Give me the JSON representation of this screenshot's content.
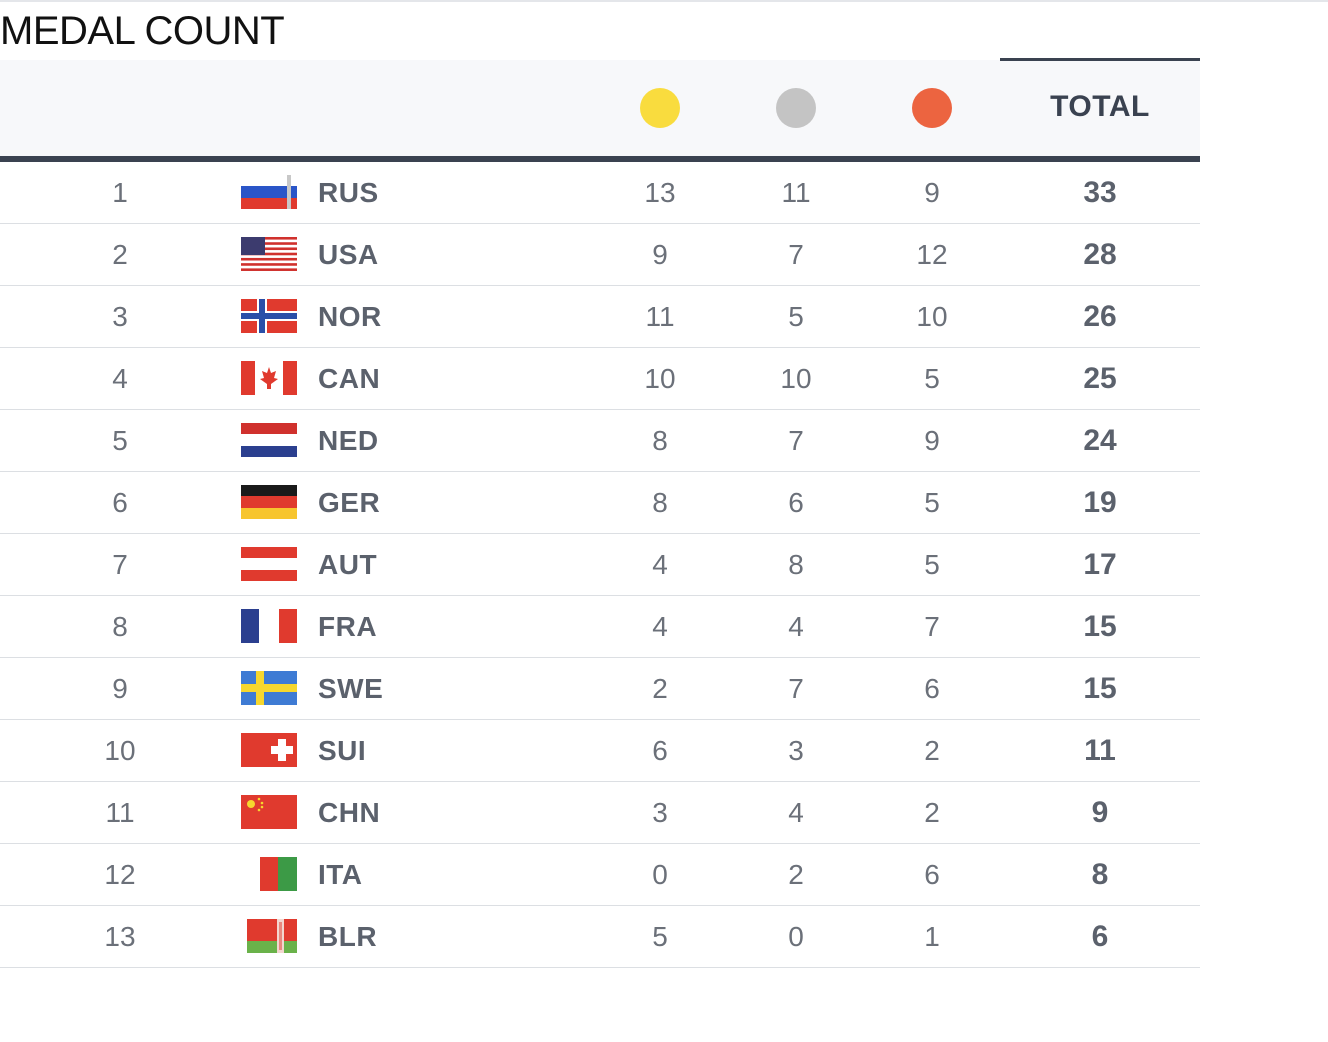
{
  "title": "MEDAL COUNT",
  "header": {
    "total_label": "TOTAL",
    "medal_colors": {
      "gold": "#f9dc3e",
      "silver": "#c4c4c4",
      "bronze": "#ec6440"
    }
  },
  "rows": [
    {
      "rank": "1",
      "code": "RUS",
      "flag": "russia-flag",
      "gold": "13",
      "silver": "11",
      "bronze": "9",
      "total": "33"
    },
    {
      "rank": "2",
      "code": "USA",
      "flag": "usa-flag",
      "gold": "9",
      "silver": "7",
      "bronze": "12",
      "total": "28"
    },
    {
      "rank": "3",
      "code": "NOR",
      "flag": "norway-flag",
      "gold": "11",
      "silver": "5",
      "bronze": "10",
      "total": "26"
    },
    {
      "rank": "4",
      "code": "CAN",
      "flag": "canada-flag",
      "gold": "10",
      "silver": "10",
      "bronze": "5",
      "total": "25"
    },
    {
      "rank": "5",
      "code": "NED",
      "flag": "netherlands-flag",
      "gold": "8",
      "silver": "7",
      "bronze": "9",
      "total": "24"
    },
    {
      "rank": "6",
      "code": "GER",
      "flag": "germany-flag",
      "gold": "8",
      "silver": "6",
      "bronze": "5",
      "total": "19"
    },
    {
      "rank": "7",
      "code": "AUT",
      "flag": "austria-flag",
      "gold": "4",
      "silver": "8",
      "bronze": "5",
      "total": "17"
    },
    {
      "rank": "8",
      "code": "FRA",
      "flag": "france-flag",
      "gold": "4",
      "silver": "4",
      "bronze": "7",
      "total": "15"
    },
    {
      "rank": "9",
      "code": "SWE",
      "flag": "sweden-flag",
      "gold": "2",
      "silver": "7",
      "bronze": "6",
      "total": "15"
    },
    {
      "rank": "10",
      "code": "SUI",
      "flag": "switzerland-flag",
      "gold": "6",
      "silver": "3",
      "bronze": "2",
      "total": "11"
    },
    {
      "rank": "11",
      "code": "CHN",
      "flag": "china-flag",
      "gold": "3",
      "silver": "4",
      "bronze": "2",
      "total": "9"
    },
    {
      "rank": "12",
      "code": "ITA",
      "flag": "italy-flag",
      "gold": "0",
      "silver": "2",
      "bronze": "6",
      "total": "8"
    },
    {
      "rank": "13",
      "code": "BLR",
      "flag": "belarus-flag",
      "gold": "5",
      "silver": "0",
      "bronze": "1",
      "total": "6"
    }
  ]
}
